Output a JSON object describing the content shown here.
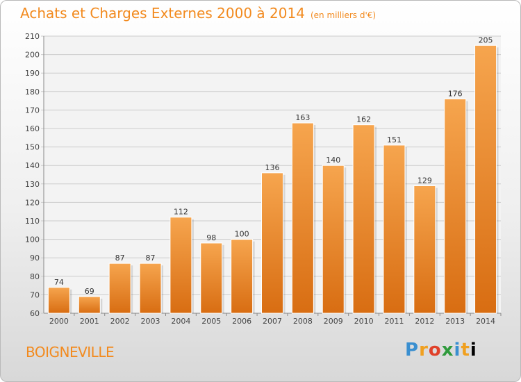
{
  "chart_data": {
    "type": "bar",
    "title": "Achats et Charges Externes 2000 à 2014",
    "unit": "(en milliers d'€)",
    "categories": [
      "2000",
      "2001",
      "2002",
      "2003",
      "2004",
      "2005",
      "2006",
      "2007",
      "2008",
      "2009",
      "2010",
      "2011",
      "2012",
      "2013",
      "2014"
    ],
    "values": [
      74,
      69,
      87,
      87,
      112,
      98,
      100,
      136,
      163,
      140,
      162,
      151,
      129,
      176,
      205
    ],
    "ylim": [
      60,
      210
    ],
    "yticks": [
      60,
      70,
      80,
      90,
      100,
      110,
      120,
      130,
      140,
      150,
      160,
      170,
      180,
      190,
      200,
      210
    ],
    "grid": true,
    "legend": "none",
    "colors": {
      "bar_light": "#f6a54e",
      "bar_dark": "#d86d12",
      "text_accent": "#f28a1e"
    }
  },
  "place": "BOIGNEVILLE",
  "logo": [
    "P",
    "r",
    "o",
    "x",
    "i",
    "t",
    "i"
  ]
}
